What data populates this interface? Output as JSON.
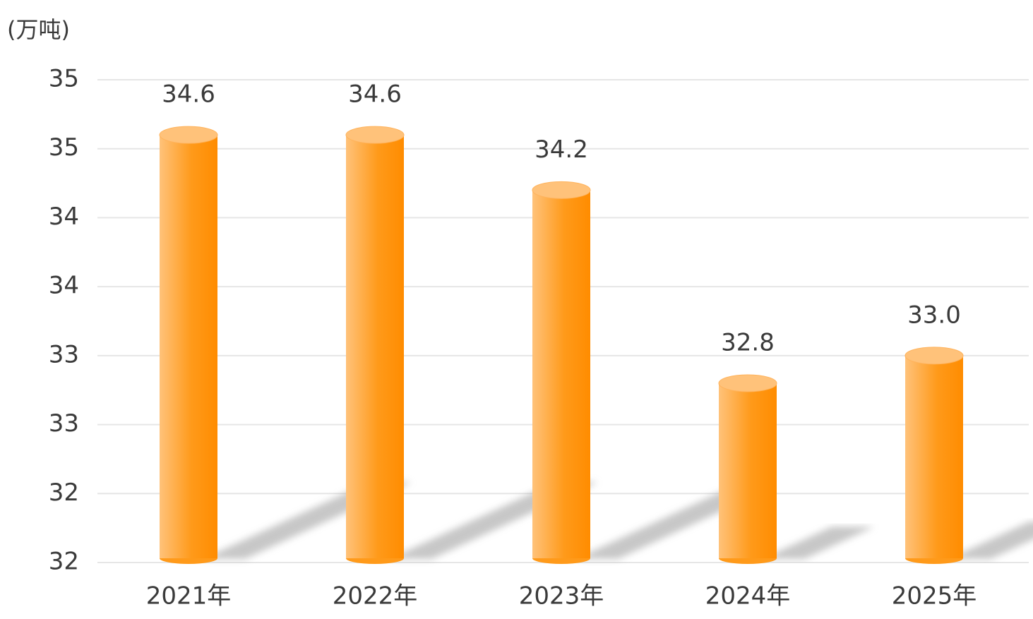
{
  "chart_data": {
    "type": "bar",
    "unit_label": "(万吨)",
    "categories": [
      "2021年",
      "2022年",
      "2023年",
      "2024年",
      "2025年"
    ],
    "values": [
      34.6,
      34.6,
      34.2,
      32.8,
      33.0
    ],
    "value_labels": [
      "34.6",
      "34.6",
      "34.2",
      "32.8",
      "33.0"
    ],
    "color": "#ff9400",
    "ylim": [
      31.5,
      35
    ],
    "yticks": [
      {
        "value": 31.5,
        "label": "32"
      },
      {
        "value": 32,
        "label": "32"
      },
      {
        "value": 32.5,
        "label": "33"
      },
      {
        "value": 33,
        "label": "33"
      },
      {
        "value": 33.5,
        "label": "34"
      },
      {
        "value": 34,
        "label": "34"
      },
      {
        "value": 34.5,
        "label": "35"
      },
      {
        "value": 35,
        "label": "35"
      }
    ],
    "grid": true
  }
}
